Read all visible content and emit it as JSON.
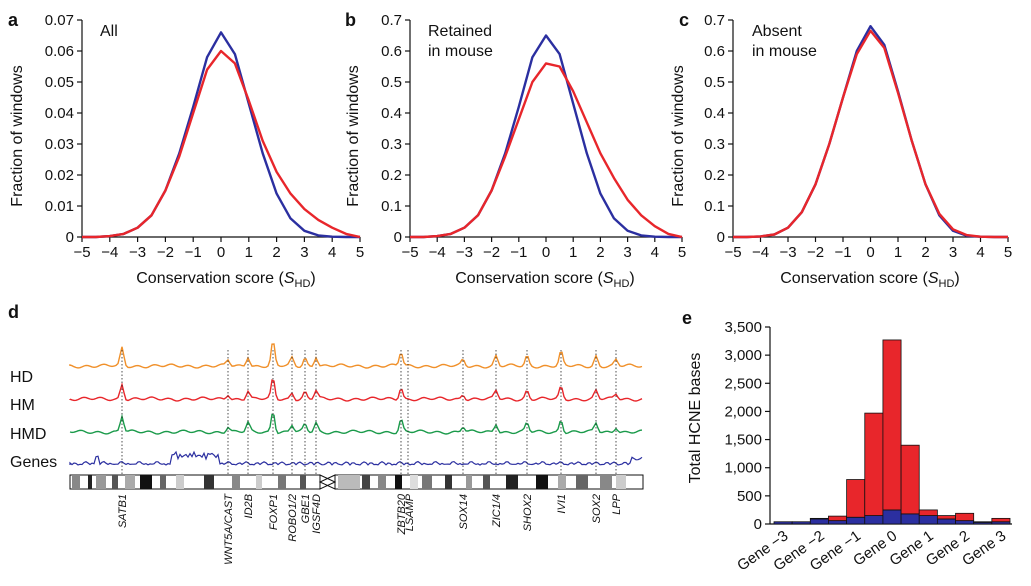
{
  "panel_labels": {
    "a": "a",
    "b": "b",
    "c": "c",
    "d": "d",
    "e": "e"
  },
  "colors": {
    "blue": "#2b2fa0",
    "red": "#e8262b",
    "orange": "#f0902a",
    "green": "#1a9a4a",
    "axis": "#111111"
  },
  "chart_data": [
    {
      "id": "a",
      "type": "line",
      "annotation": "All",
      "xlabel_main": "Conservation score (",
      "xlabel_var": "S",
      "xlabel_sub": "HD",
      "xlabel_close": ")",
      "ylabel": "Fraction of windows",
      "xlim": [
        -5,
        5
      ],
      "ylim": [
        0,
        0.07
      ],
      "xticks": [
        "-5",
        "-4",
        "-3",
        "-2",
        "-1",
        "0",
        "1",
        "2",
        "3",
        "4",
        "5"
      ],
      "yticks": [
        "0",
        "0.01",
        "0.02",
        "0.03",
        "0.04",
        "0.05",
        "0.06",
        "0.07"
      ],
      "x": [
        -5,
        -4.5,
        -4,
        -3.5,
        -3,
        -2.5,
        -2,
        -1.5,
        -1,
        -0.5,
        0,
        0.5,
        1,
        1.5,
        2,
        2.5,
        3,
        3.5,
        4,
        4.5,
        5
      ],
      "series": [
        {
          "color": "#2b2fa0",
          "values": [
            0,
            0,
            0.0003,
            0.001,
            0.003,
            0.007,
            0.015,
            0.027,
            0.042,
            0.058,
            0.066,
            0.059,
            0.043,
            0.027,
            0.014,
            0.006,
            0.002,
            0.0005,
            0.0001,
            0,
            0
          ]
        },
        {
          "color": "#e8262b",
          "values": [
            0,
            0,
            0.0003,
            0.001,
            0.003,
            0.007,
            0.015,
            0.026,
            0.04,
            0.054,
            0.06,
            0.056,
            0.044,
            0.031,
            0.021,
            0.014,
            0.009,
            0.0055,
            0.003,
            0.001,
            0
          ]
        }
      ]
    },
    {
      "id": "b",
      "type": "line",
      "annotation": "Retained\nin mouse",
      "xlabel_main": "Conservation score (",
      "xlabel_var": "S",
      "xlabel_sub": "HD",
      "xlabel_close": ")",
      "ylabel": "Fraction of windows",
      "xlim": [
        -5,
        5
      ],
      "ylim": [
        0,
        0.7
      ],
      "xticks": [
        "-5",
        "-4",
        "-3",
        "-2",
        "-1",
        "0",
        "1",
        "2",
        "3",
        "4",
        "5"
      ],
      "yticks": [
        "0",
        "0.1",
        "0.2",
        "0.3",
        "0.4",
        "0.5",
        "0.6",
        "0.7"
      ],
      "x": [
        -5,
        -4.5,
        -4,
        -3.5,
        -3,
        -2.5,
        -2,
        -1.5,
        -1,
        -0.5,
        0,
        0.5,
        1,
        1.5,
        2,
        2.5,
        3,
        3.5,
        4,
        4.5,
        5
      ],
      "series": [
        {
          "color": "#2b2fa0",
          "values": [
            0,
            0,
            0.003,
            0.01,
            0.03,
            0.07,
            0.15,
            0.27,
            0.42,
            0.58,
            0.65,
            0.59,
            0.43,
            0.27,
            0.14,
            0.06,
            0.02,
            0.005,
            0.001,
            0,
            0
          ]
        },
        {
          "color": "#e8262b",
          "values": [
            0,
            0,
            0.003,
            0.01,
            0.03,
            0.07,
            0.15,
            0.26,
            0.38,
            0.5,
            0.56,
            0.55,
            0.47,
            0.37,
            0.27,
            0.19,
            0.12,
            0.07,
            0.035,
            0.01,
            0
          ]
        }
      ]
    },
    {
      "id": "c",
      "type": "line",
      "annotation": "Absent\nin mouse",
      "xlabel_main": "Conservation score (",
      "xlabel_var": "S",
      "xlabel_sub": "HD",
      "xlabel_close": ")",
      "ylabel": "Fraction of windows",
      "xlim": [
        -5,
        5
      ],
      "ylim": [
        0,
        0.7
      ],
      "xticks": [
        "-5",
        "-4",
        "-3",
        "-2",
        "-1",
        "0",
        "1",
        "2",
        "3",
        "4",
        "5"
      ],
      "yticks": [
        "0",
        "0.1",
        "0.2",
        "0.3",
        "0.4",
        "0.5",
        "0.6",
        "0.7"
      ],
      "x": [
        -5,
        -4.5,
        -4,
        -3.5,
        -3,
        -2.5,
        -2,
        -1.5,
        -1,
        -0.5,
        0,
        0.5,
        1,
        1.5,
        2,
        2.5,
        3,
        3.5,
        4,
        4.5,
        5
      ],
      "series": [
        {
          "color": "#2b2fa0",
          "values": [
            0,
            0,
            0.002,
            0.008,
            0.03,
            0.08,
            0.17,
            0.3,
            0.45,
            0.6,
            0.68,
            0.62,
            0.47,
            0.31,
            0.17,
            0.07,
            0.02,
            0.004,
            0.001,
            0,
            0
          ]
        },
        {
          "color": "#e8262b",
          "values": [
            0,
            0,
            0.002,
            0.008,
            0.03,
            0.08,
            0.17,
            0.3,
            0.45,
            0.59,
            0.665,
            0.61,
            0.465,
            0.31,
            0.17,
            0.075,
            0.025,
            0.006,
            0.001,
            0,
            0
          ]
        }
      ]
    },
    {
      "id": "e",
      "type": "bar",
      "stacked": true,
      "ylabel": "Total HCNE bases",
      "ylim": [
        0,
        3500
      ],
      "yticks": [
        "0",
        "500",
        "1,000",
        "1,500",
        "2,000",
        "2,500",
        "3,000",
        "3,500"
      ],
      "categories": [
        "Gene −3",
        "",
        "Gene −2",
        "",
        "Gene −1",
        "",
        "Gene 0",
        "",
        "Gene 1",
        "",
        "Gene 2",
        "",
        "Gene 3"
      ],
      "series": [
        {
          "color": "#2b2fa0",
          "values": [
            40,
            40,
            90,
            60,
            120,
            150,
            250,
            180,
            150,
            90,
            60,
            30,
            40
          ]
        },
        {
          "color": "#e8262b",
          "values": [
            0,
            0,
            10,
            80,
            670,
            1820,
            3020,
            1220,
            100,
            60,
            130,
            10,
            60
          ]
        }
      ]
    }
  ],
  "tracks": {
    "labels": [
      "HD",
      "HM",
      "HMD",
      "Genes"
    ],
    "genes": [
      "SATB1",
      "WNT5A/CAST",
      "ID2B",
      "FOXP1",
      "ROBO1/2",
      "GBE1",
      "IGSF4D",
      "ZBTB20",
      "LSAMP",
      "SOX14",
      "ZIC1/4",
      "SHOX2",
      "IVI1",
      "SOX2",
      "LPP"
    ]
  }
}
